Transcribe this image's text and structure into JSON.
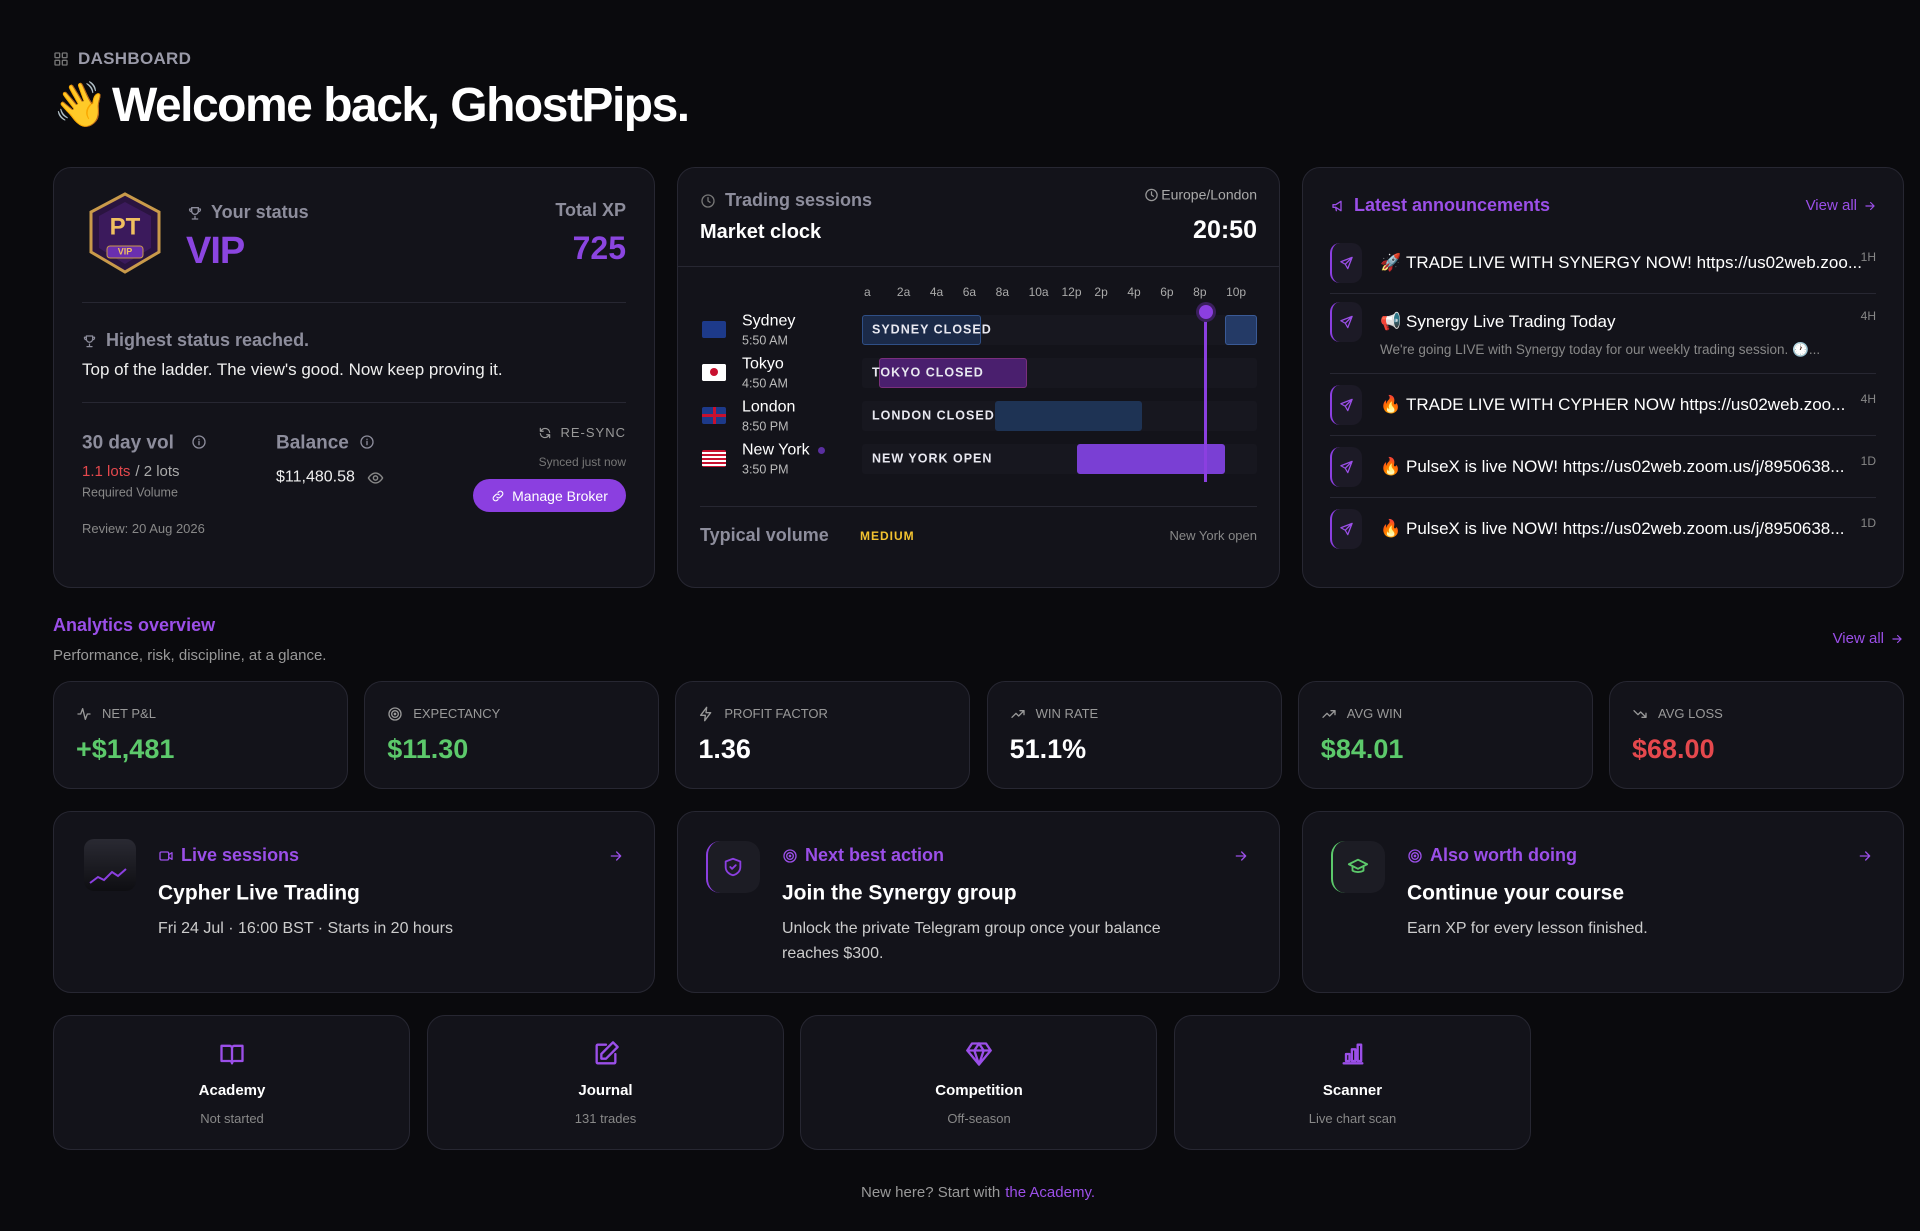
{
  "header": {
    "breadcrumb": "DASHBOARD",
    "emoji": "👋",
    "title": "Welcome back, GhostPips."
  },
  "status_card": {
    "badge": {
      "initials": "PT",
      "tier": "VIP"
    },
    "label": "Your status",
    "status": "VIP",
    "xp_label": "Total XP",
    "xp": "725",
    "highest_title": "Highest status reached.",
    "highest_text": "Top of the ladder. The view's good. Now keep proving it.",
    "vol_label": "30 day vol",
    "vol_current": "1.1 lots",
    "vol_target": "/ 2 lots",
    "vol_note": "Required Volume",
    "review": "Review: 20 Aug 2026",
    "balance_label": "Balance",
    "balance": "$11,480.58",
    "resync": "RE-SYNC",
    "synced": "Synced just now",
    "manage": "Manage Broker"
  },
  "market_clock": {
    "label": "Trading sessions",
    "title": "Market clock",
    "timezone": "Europe/London",
    "time": "20:50",
    "hours": [
      "a",
      "2a",
      "4a",
      "6a",
      "8a",
      "10a",
      "12p",
      "2p",
      "4p",
      "6p",
      "8p",
      "10p"
    ],
    "sessions": [
      {
        "city": "Sydney",
        "local_time": "5:50 AM",
        "status": "SYDNEY CLOSED"
      },
      {
        "city": "Tokyo",
        "local_time": "4:50 AM",
        "status": "TOKYO CLOSED"
      },
      {
        "city": "London",
        "local_time": "8:50 PM",
        "status": "LONDON CLOSED"
      },
      {
        "city": "New York",
        "local_time": "3:50 PM",
        "status": "NEW YORK OPEN"
      }
    ],
    "volume_label": "Typical volume",
    "volume": "MEDIUM",
    "note": "New York open"
  },
  "announcements": {
    "title": "Latest announcements",
    "view_all": "View all",
    "items": [
      {
        "icon": "🚀",
        "text": "TRADE LIVE WITH SYNERGY NOW! https://us02web.zoo...",
        "age": "1H"
      },
      {
        "icon": "📢",
        "text": "Synergy Live Trading Today",
        "sub": "We're going LIVE with Synergy today for our weekly trading session. 🕐...",
        "age": "4H"
      },
      {
        "icon": "🔥",
        "text": "TRADE LIVE WITH CYPHER NOW https://us02web.zoo...",
        "age": "4H"
      },
      {
        "icon": "🔥",
        "text": "PulseX is live NOW! https://us02web.zoom.us/j/8950638...",
        "age": "1D"
      },
      {
        "icon": "🔥",
        "text": "PulseX is live NOW! https://us02web.zoom.us/j/8950638...",
        "age": "1D"
      }
    ]
  },
  "analytics": {
    "title": "Analytics overview",
    "subtitle": "Performance, risk, discipline, at a glance.",
    "view_all": "View all",
    "stats": [
      {
        "label": "NET P&L",
        "value": "+$1,481",
        "color": "#5cc96b"
      },
      {
        "label": "EXPECTANCY",
        "value": "$11.30",
        "color": "#5cc96b"
      },
      {
        "label": "PROFIT FACTOR",
        "value": "1.36",
        "color": "#ffffff"
      },
      {
        "label": "WIN RATE",
        "value": "51.1%",
        "color": "#ffffff"
      },
      {
        "label": "AVG WIN",
        "value": "$84.01",
        "color": "#5cc96b"
      },
      {
        "label": "AVG LOSS",
        "value": "$68.00",
        "color": "#e5484d"
      }
    ]
  },
  "actions": [
    {
      "kicker": "Live sessions",
      "title": "Cypher Live Trading",
      "text": "Fri 24 Jul · 16:00 BST · Starts in 20 hours"
    },
    {
      "kicker": "Next best action",
      "title": "Join the Synergy group",
      "text": "Unlock the private Telegram group once your balance reaches $300."
    },
    {
      "kicker": "Also worth doing",
      "title": "Continue your course",
      "text": "Earn XP for every lesson finished."
    }
  ],
  "links": [
    {
      "title": "Academy",
      "sub": "Not started"
    },
    {
      "title": "Journal",
      "sub": "131 trades"
    },
    {
      "title": "Competition",
      "sub": "Off-season"
    },
    {
      "title": "Scanner",
      "sub": "Live chart scan"
    }
  ],
  "footer": {
    "text": "New here? Start with",
    "link": "the Academy."
  }
}
